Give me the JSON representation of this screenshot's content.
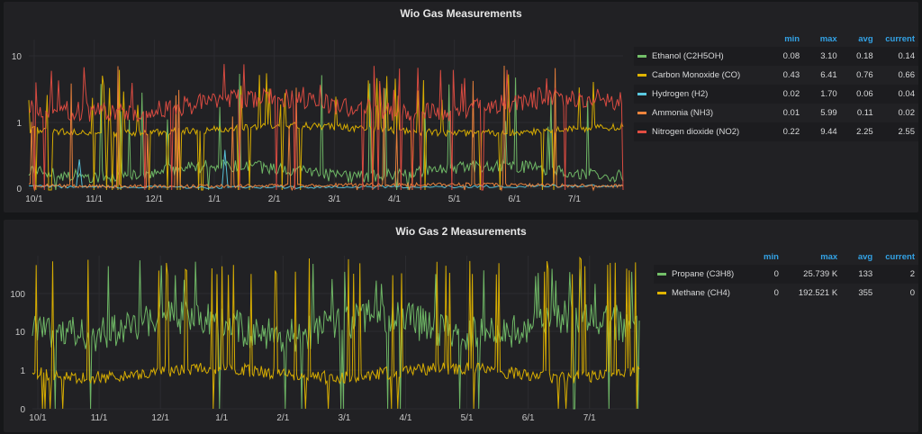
{
  "chart_data": [
    {
      "type": "line",
      "title": "Wio Gas Measurements",
      "x_ticks": [
        "10/1",
        "11/1",
        "12/1",
        "1/1",
        "2/1",
        "3/1",
        "4/1",
        "5/1",
        "6/1",
        "7/1"
      ],
      "y_scale": "log",
      "y_ticks": [
        "0",
        "1",
        "10"
      ],
      "grid": true,
      "legend_placement": "right",
      "legend_headers": {
        "min": "min",
        "max": "max",
        "avg": "avg",
        "current": "current"
      },
      "series": [
        {
          "name": "Ethanol (C2H5OH)",
          "color": "#73bf69",
          "min": "0.08",
          "max": "3.10",
          "avg": "0.18",
          "current": "0.14"
        },
        {
          "name": "Carbon Monoxide (CO)",
          "color": "#e0b400",
          "min": "0.43",
          "max": "6.41",
          "avg": "0.76",
          "current": "0.66"
        },
        {
          "name": "Hydrogen (H2)",
          "color": "#5ac8e0",
          "min": "0.02",
          "max": "1.70",
          "avg": "0.06",
          "current": "0.04"
        },
        {
          "name": "Ammonia (NH3)",
          "color": "#ef843c",
          "min": "0.01",
          "max": "5.99",
          "avg": "0.11",
          "current": "0.02"
        },
        {
          "name": "Nitrogen dioxide (NO2)",
          "color": "#e24d42",
          "min": "0.22",
          "max": "9.44",
          "avg": "2.25",
          "current": "2.55"
        }
      ]
    },
    {
      "type": "line",
      "title": "Wio Gas 2 Measurements",
      "x_ticks": [
        "10/1",
        "11/1",
        "12/1",
        "1/1",
        "2/1",
        "3/1",
        "4/1",
        "5/1",
        "6/1",
        "7/1"
      ],
      "y_scale": "log",
      "y_ticks": [
        "0",
        "1",
        "10",
        "100"
      ],
      "grid": true,
      "legend_placement": "right",
      "legend_headers": {
        "min": "min",
        "max": "max",
        "avg": "avg",
        "current": "current"
      },
      "series": [
        {
          "name": "Propane (C3H8)",
          "color": "#73bf69",
          "min": "0",
          "max": "25.739 K",
          "avg": "133",
          "current": "2"
        },
        {
          "name": "Methane (CH4)",
          "color": "#e0b400",
          "min": "0",
          "max": "192.521 K",
          "avg": "355",
          "current": "0"
        }
      ]
    }
  ]
}
